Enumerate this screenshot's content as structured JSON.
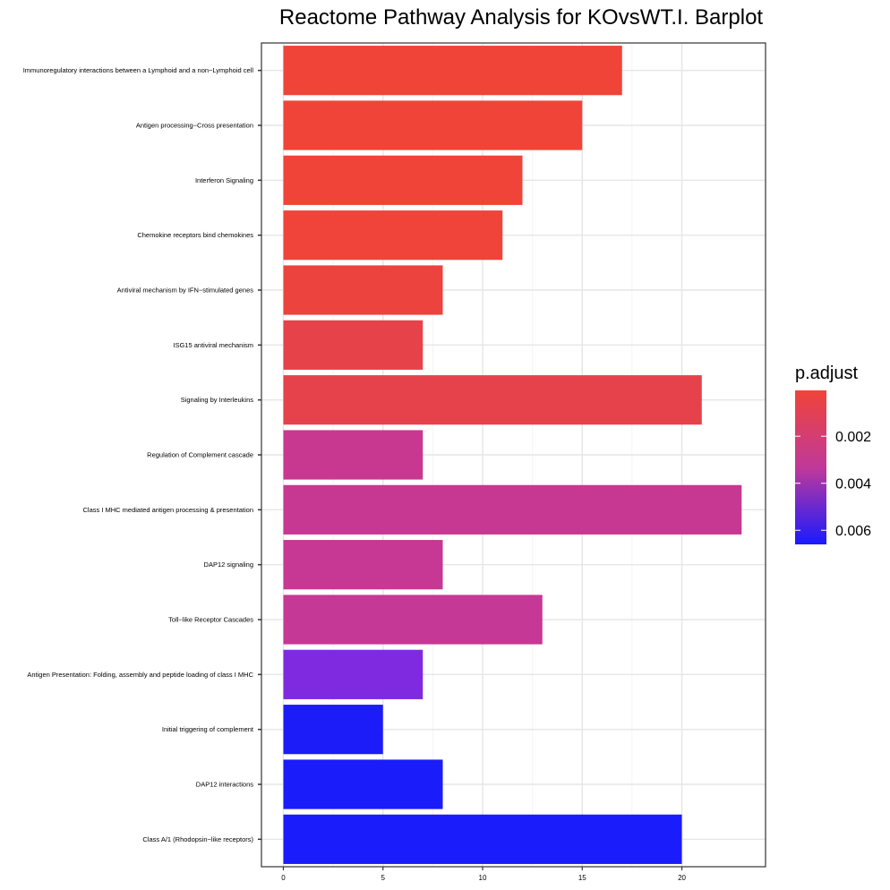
{
  "chart_data": {
    "type": "bar",
    "orientation": "horizontal",
    "title": "Reactome Pathway Analysis for KOvsWT.I. Barplot",
    "xlabel": "",
    "ylabel": "",
    "xlim": [
      -1.1,
      24.2
    ],
    "xticks": [
      0,
      5,
      10,
      15,
      20
    ],
    "grid": true,
    "categories": [
      "Immunoregulatory interactions between a Lymphoid and a non−Lymphoid cell",
      "Antigen processing−Cross presentation",
      "Interferon Signaling",
      "Chemokine receptors bind chemokines",
      "Antiviral mechanism by IFN−stimulated genes",
      "ISG15 antiviral mechanism",
      "Signaling by Interleukins",
      "Regulation of Complement cascade",
      "Class I MHC mediated antigen processing & presentation",
      "DAP12 signaling",
      "Toll−like Receptor Cascades",
      "Antigen Presentation: Folding, assembly and peptide loading of class I MHC",
      "Initial triggering of complement",
      "DAP12 interactions",
      "Class A/1 (Rhodopsin−like receptors)"
    ],
    "values": [
      17,
      15,
      12,
      11,
      8,
      7,
      21,
      7,
      23,
      8,
      13,
      7,
      5,
      8,
      20
    ],
    "p_adjust": [
      5e-05,
      0.0001,
      0.0002,
      0.0003,
      0.0005,
      0.0008,
      0.0009,
      0.0027,
      0.0028,
      0.0029,
      0.003,
      0.0047,
      0.0063,
      0.0064,
      0.0065
    ],
    "colors": [
      "#f04438",
      "#f04438",
      "#f04439",
      "#f0443a",
      "#ec433e",
      "#e6424a",
      "#e6424b",
      "#c83890",
      "#c63892",
      "#c63893",
      "#c63895",
      "#7f2ae0",
      "#1c1cf8",
      "#1a1cfa",
      "#1a1cfc"
    ],
    "legend": {
      "title": "p.adjust",
      "ticks": [
        "0.002",
        "0.004",
        "0.006"
      ],
      "tick_values": [
        0.002,
        0.004,
        0.006
      ],
      "range": [
        5e-05,
        0.0066
      ],
      "color_low": "#f04438",
      "color_mid": "#c03999",
      "color_high": "#1a1aff",
      "placement": "right"
    }
  }
}
